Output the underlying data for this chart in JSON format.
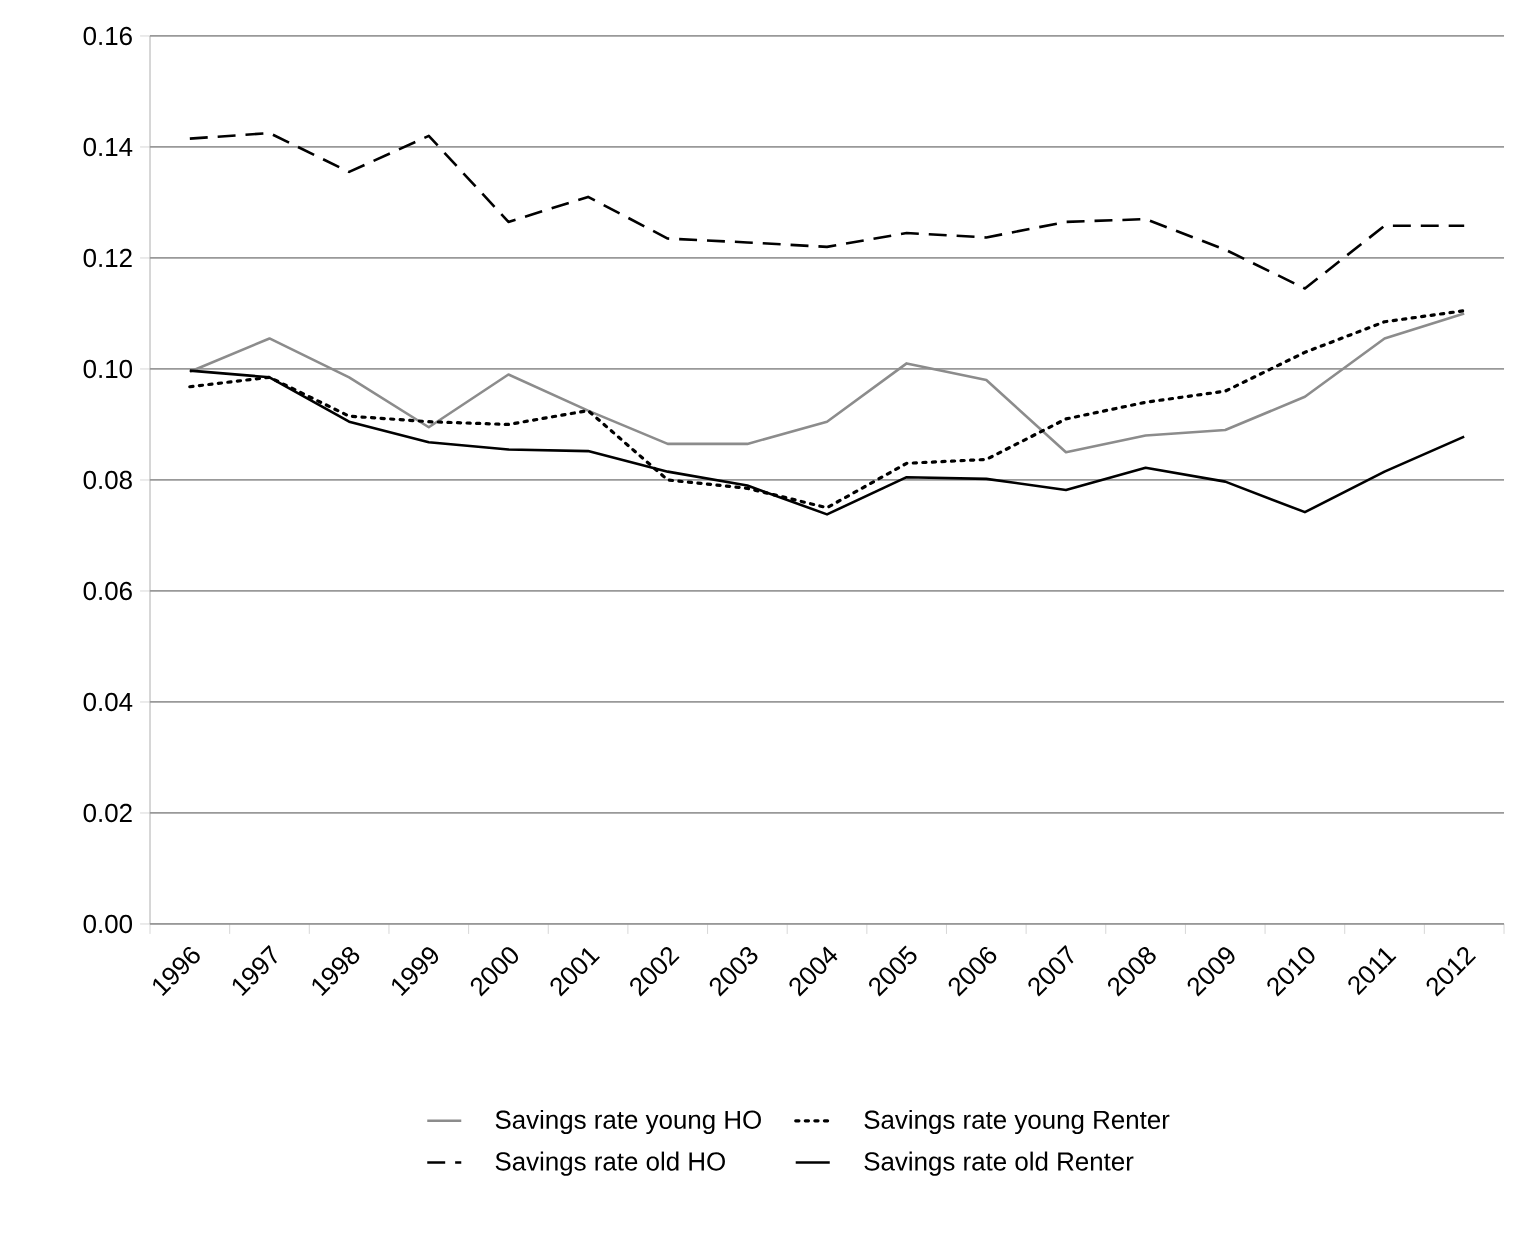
{
  "chart_data": {
    "type": "line",
    "categories": [
      "1996",
      "1997",
      "1998",
      "1999",
      "2000",
      "2001",
      "2002",
      "2003",
      "2004",
      "2005",
      "2006",
      "2007",
      "2008",
      "2009",
      "2010",
      "2011",
      "2012"
    ],
    "series": [
      {
        "name": "Savings rate young HO",
        "color": "#8c8c8c",
        "line_style": "solid",
        "values": [
          0.0995,
          0.1055,
          0.0985,
          0.0895,
          0.099,
          0.0925,
          0.0865,
          0.0865,
          0.0905,
          0.101,
          0.098,
          0.085,
          0.088,
          0.089,
          0.095,
          0.1055,
          0.11
        ]
      },
      {
        "name": "Savings rate young Renter",
        "color": "#000000",
        "line_style": "dotted",
        "values": [
          0.0968,
          0.0985,
          0.0915,
          0.0905,
          0.09,
          0.0925,
          0.08,
          0.0785,
          0.075,
          0.083,
          0.0837,
          0.091,
          0.094,
          0.096,
          0.103,
          0.1085,
          0.1105
        ]
      },
      {
        "name": "Savings rate old HO",
        "color": "#000000",
        "line_style": "dashed",
        "values": [
          0.1415,
          0.1425,
          0.1355,
          0.142,
          0.1265,
          0.131,
          0.1235,
          0.1228,
          0.122,
          0.1245,
          0.1237,
          0.1265,
          0.127,
          0.1215,
          0.1145,
          0.1258,
          0.1258
        ]
      },
      {
        "name": "Savings rate old Renter",
        "color": "#000000",
        "line_style": "solid",
        "values": [
          0.0997,
          0.0985,
          0.0905,
          0.0868,
          0.0855,
          0.0852,
          0.0815,
          0.079,
          0.0738,
          0.0805,
          0.0802,
          0.0782,
          0.0822,
          0.0797,
          0.0742,
          0.0815,
          0.0878
        ]
      }
    ],
    "ylim": [
      0,
      0.16
    ],
    "yticks": [
      {
        "value": 0,
        "label": "0.00"
      },
      {
        "value": 0.02,
        "label": "0.02"
      },
      {
        "value": 0.04,
        "label": "0.04"
      },
      {
        "value": 0.06,
        "label": "0.06"
      },
      {
        "value": 0.08,
        "label": "0.08"
      },
      {
        "value": 0.1,
        "label": "0.10"
      },
      {
        "value": 0.12,
        "label": "0.12"
      },
      {
        "value": 0.14,
        "label": "0.14"
      },
      {
        "value": 0.16,
        "label": "0.16"
      }
    ],
    "grid": "y",
    "legend": "bottom",
    "marker": "none"
  }
}
